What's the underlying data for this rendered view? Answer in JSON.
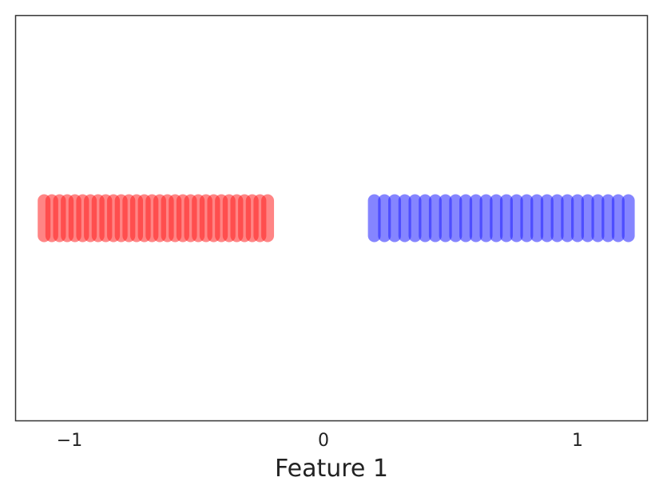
{
  "chart_data": {
    "type": "scatter",
    "title": "",
    "xlabel": "Feature 1",
    "ylabel": "",
    "xlim": [
      -1.1,
      1.3
    ],
    "ylim": [
      -1,
      1
    ],
    "x_ticks": [
      {
        "value": -1,
        "label": "−1"
      },
      {
        "value": 0,
        "label": "0"
      },
      {
        "value": 1,
        "label": "1"
      }
    ],
    "grid": false,
    "legend": "none",
    "series": [
      {
        "color": "#ff2020",
        "x_start": -1.1,
        "x_end": -0.22,
        "count": 30,
        "y": 0
      },
      {
        "color": "#2020ff",
        "x_start": 0.2,
        "x_end": 1.2,
        "count": 26,
        "y": 0
      }
    ]
  }
}
